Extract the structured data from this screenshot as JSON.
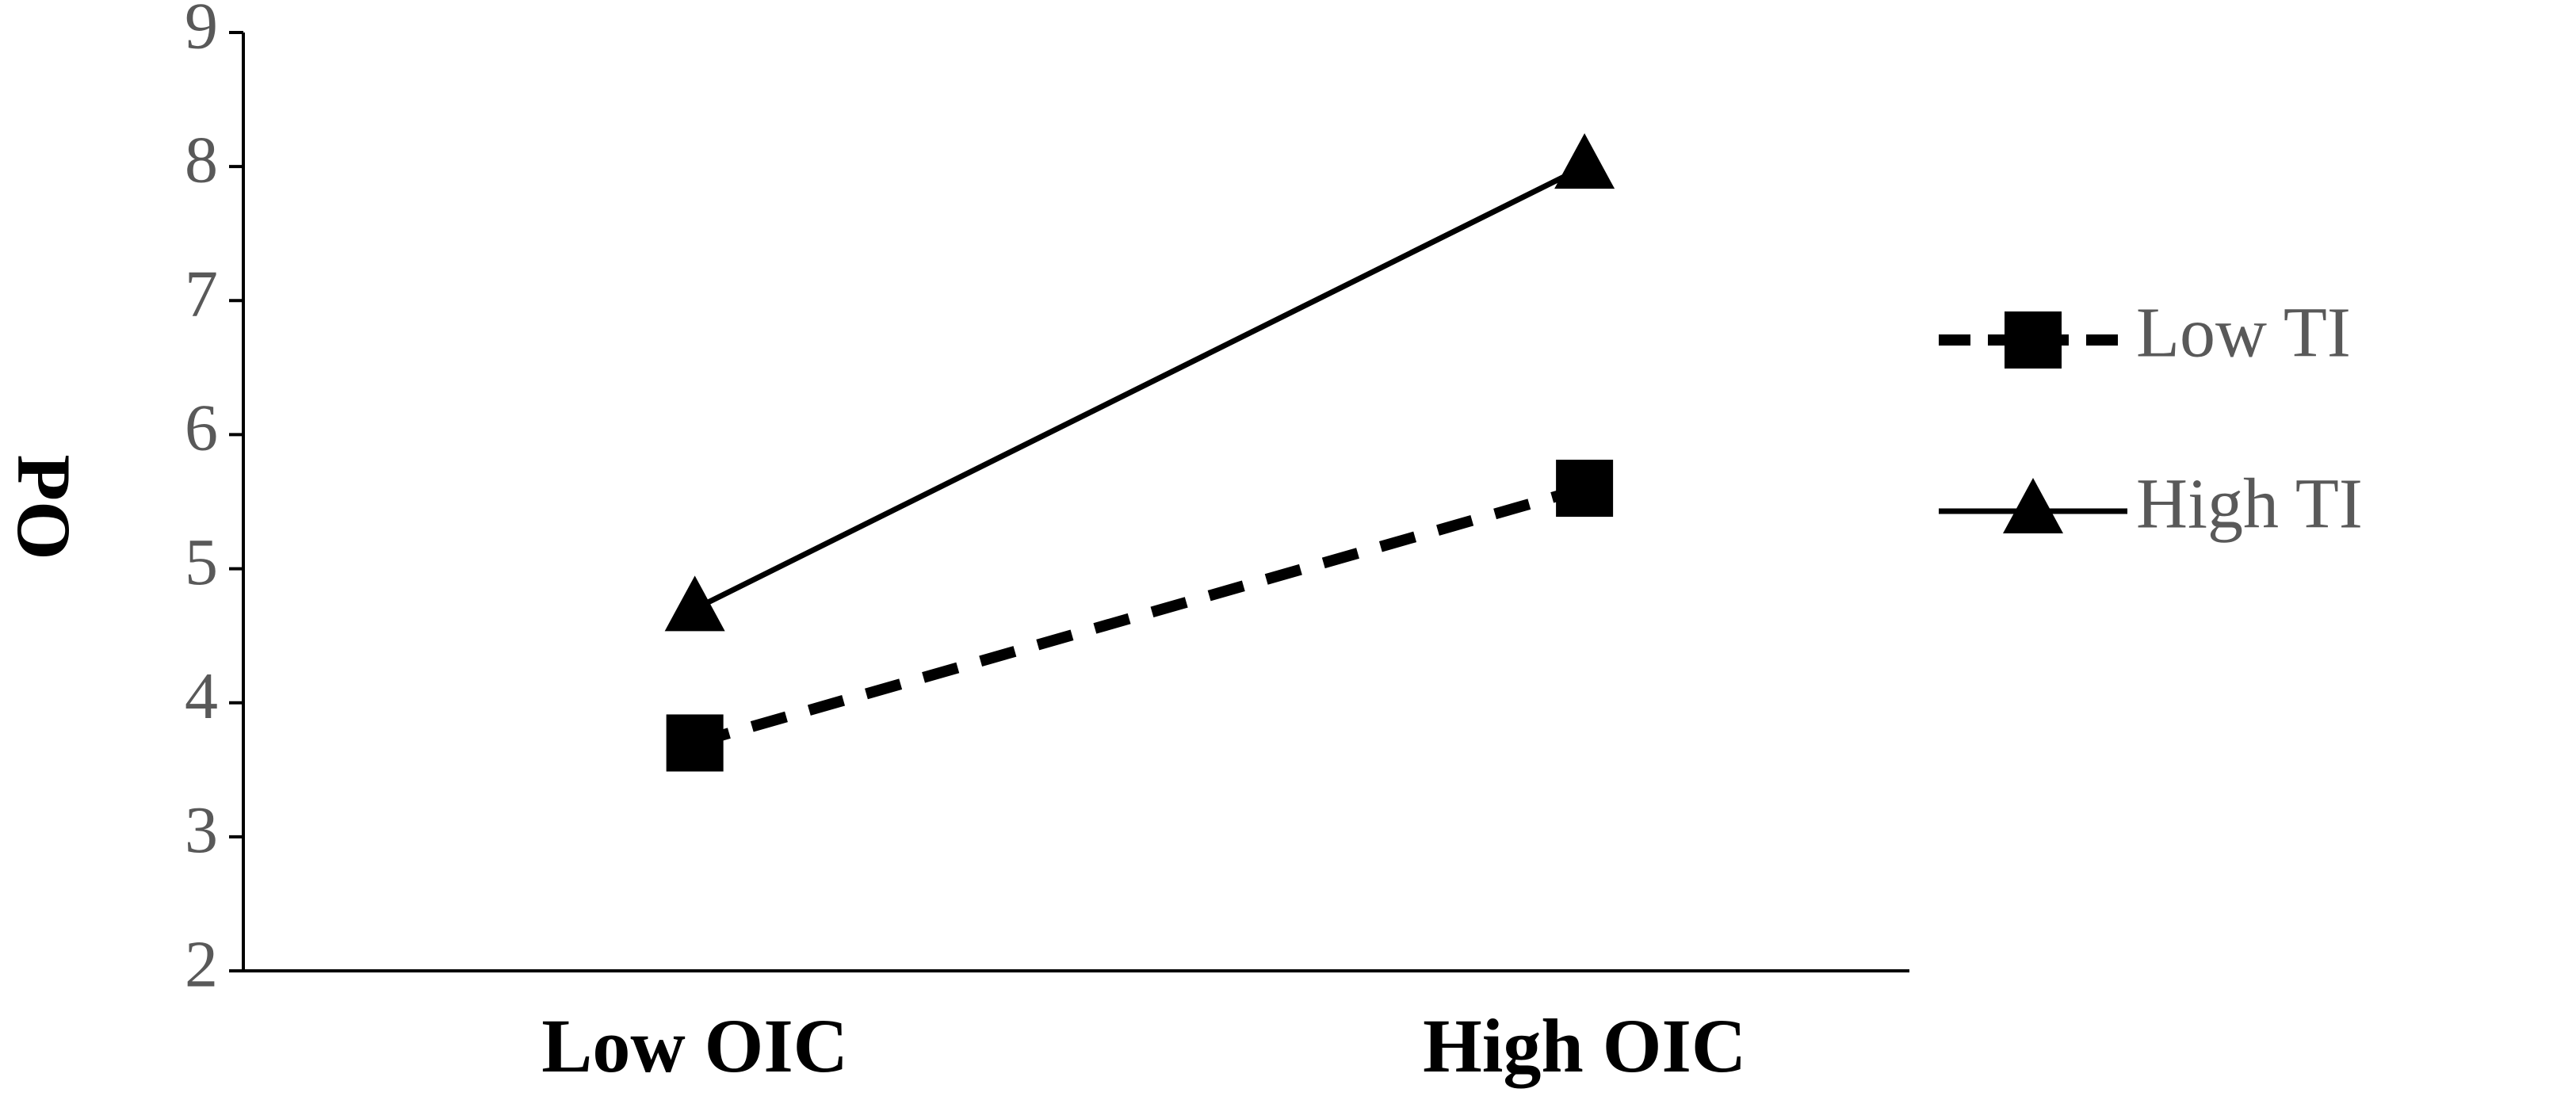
{
  "chart_data": {
    "type": "line",
    "y_label": "PO",
    "categories": [
      "Low OIC",
      "High OIC"
    ],
    "series": [
      {
        "name": "Low TI",
        "color": "#000000",
        "dash": true,
        "marker": "square",
        "values": [
          3.7,
          5.6
        ]
      },
      {
        "name": "High TI",
        "color": "#000000",
        "dash": false,
        "marker": "triangle",
        "values": [
          4.7,
          8
        ]
      }
    ],
    "ylim": [
      2,
      9
    ],
    "yticks": [
      2,
      3,
      4,
      5,
      6,
      7,
      8,
      9
    ],
    "grid": false,
    "legend": "right"
  }
}
